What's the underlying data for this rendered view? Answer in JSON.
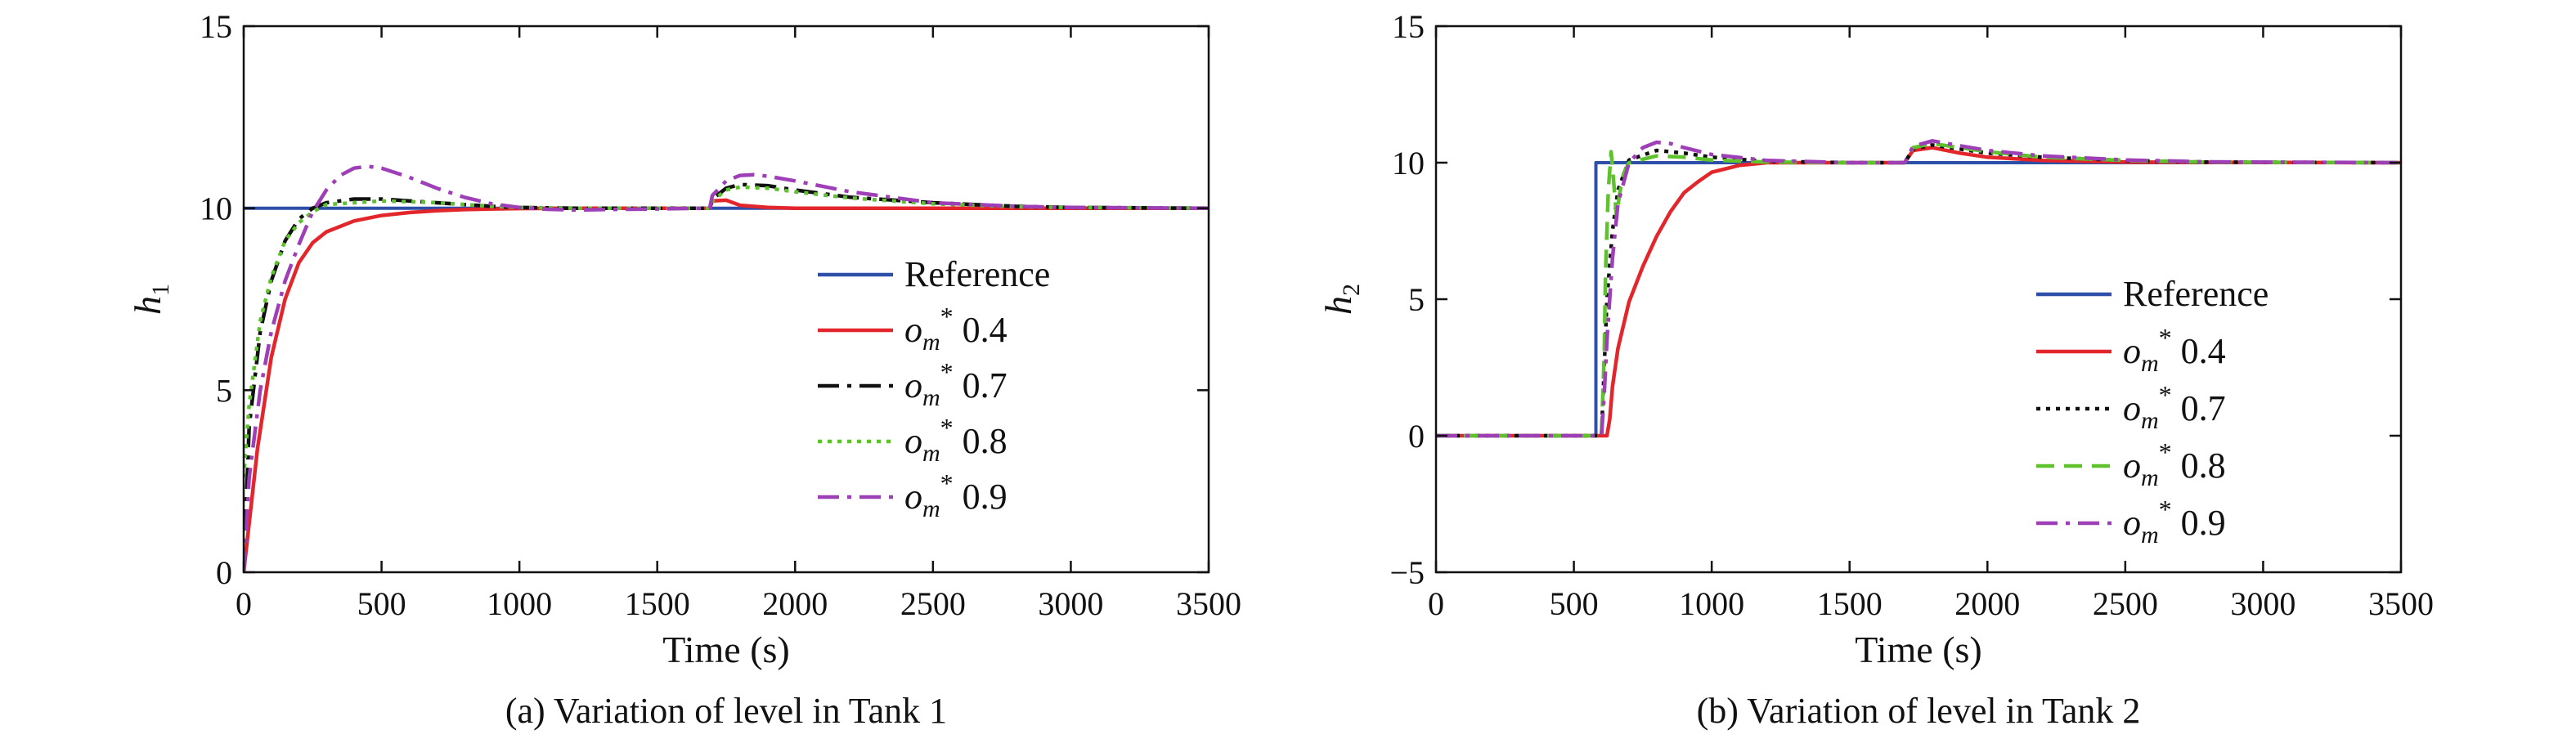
{
  "chart_data": [
    {
      "type": "line",
      "caption": "(a) Variation of level in Tank 1",
      "xlabel": "Time (s)",
      "ylabel": {
        "main": "h",
        "sub": "1"
      },
      "xlim": [
        0,
        3500
      ],
      "ylim": [
        0,
        15
      ],
      "xticks": [
        0,
        500,
        1000,
        1500,
        2000,
        2500,
        3000,
        3500
      ],
      "yticks": [
        0,
        5,
        10,
        15
      ],
      "grid": false,
      "legend_position": "center-right",
      "series": [
        {
          "name": "Reference",
          "color": "#2E4FA8",
          "dash": "solid",
          "x": [
            0,
            3500
          ],
          "y": [
            10,
            10
          ]
        },
        {
          "name": "o_m* 0.4",
          "color": "#E3262B",
          "dash": "solid",
          "x": [
            0,
            50,
            100,
            150,
            200,
            250,
            300,
            400,
            500,
            600,
            700,
            800,
            900,
            1000,
            1200,
            1500,
            1690,
            1700,
            1750,
            1800,
            1900,
            2000,
            2500,
            3000,
            3500
          ],
          "y": [
            0,
            3.4,
            5.9,
            7.5,
            8.5,
            9.05,
            9.35,
            9.65,
            9.8,
            9.88,
            9.93,
            9.96,
            9.98,
            9.99,
            10.0,
            10.0,
            10.0,
            10.2,
            10.22,
            10.08,
            10.02,
            10.0,
            10.0,
            10.0,
            10.0
          ]
        },
        {
          "name": "o_m* 0.7",
          "color": "#111111",
          "dash": "dashdot",
          "x": [
            0,
            20,
            60,
            100,
            150,
            200,
            250,
            300,
            400,
            500,
            600,
            700,
            800,
            900,
            1000,
            1200,
            1400,
            1500,
            1690,
            1700,
            1750,
            1800,
            1900,
            2000,
            2200,
            2500,
            2800,
            3000,
            3500
          ],
          "y": [
            0,
            4.0,
            6.6,
            8.0,
            9.1,
            9.7,
            10.0,
            10.15,
            10.25,
            10.25,
            10.2,
            10.15,
            10.1,
            10.05,
            10.02,
            10.0,
            10.0,
            10.0,
            10.0,
            10.25,
            10.55,
            10.65,
            10.62,
            10.5,
            10.3,
            10.15,
            10.05,
            10.02,
            10.0
          ]
        },
        {
          "name": "o_m* 0.8",
          "color": "#5EC22D",
          "dash": "dotted",
          "x": [
            0,
            20,
            60,
            100,
            150,
            200,
            250,
            300,
            400,
            500,
            600,
            700,
            800,
            900,
            1000,
            1200,
            1500,
            1690,
            1700,
            1750,
            1800,
            1900,
            2000,
            2200,
            2500,
            2800,
            3000,
            3500
          ],
          "y": [
            2.6,
            4.6,
            6.9,
            8.1,
            9.1,
            9.6,
            9.9,
            10.1,
            10.15,
            10.2,
            10.18,
            10.15,
            10.1,
            10.05,
            10.02,
            10.0,
            10.0,
            10.0,
            10.2,
            10.5,
            10.58,
            10.55,
            10.45,
            10.28,
            10.12,
            10.04,
            10.02,
            10.0
          ]
        },
        {
          "name": "o_m* 0.9",
          "color": "#9E3FB7",
          "dash": "dashdot",
          "x": [
            0,
            20,
            60,
            100,
            150,
            200,
            250,
            300,
            350,
            400,
            450,
            500,
            600,
            700,
            800,
            900,
            1000,
            1100,
            1200,
            1300,
            1400,
            1500,
            1690,
            1700,
            1750,
            1800,
            1850,
            1900,
            2000,
            2200,
            2500,
            2800,
            3000,
            3500
          ],
          "y": [
            0,
            2.6,
            5.0,
            6.6,
            8.0,
            9.0,
            9.9,
            10.5,
            10.9,
            11.1,
            11.15,
            11.1,
            10.85,
            10.55,
            10.3,
            10.12,
            10.02,
            9.97,
            9.95,
            9.96,
            9.97,
            9.98,
            10.0,
            10.35,
            10.75,
            10.9,
            10.92,
            10.88,
            10.75,
            10.45,
            10.15,
            10.05,
            10.02,
            10.0
          ]
        }
      ]
    },
    {
      "type": "line",
      "caption": "(b) Variation of level in Tank 2",
      "xlabel": "Time (s)",
      "ylabel": {
        "main": "h",
        "sub": "2"
      },
      "xlim": [
        0,
        3500
      ],
      "ylim": [
        -5,
        15
      ],
      "xticks": [
        0,
        500,
        1000,
        1500,
        2000,
        2500,
        3000,
        3500
      ],
      "yticks": [
        -5,
        0,
        5,
        10,
        15
      ],
      "ytick_labels": [
        "−5",
        "0",
        "5",
        "10",
        "15"
      ],
      "grid": false,
      "legend_position": "center-right",
      "series": [
        {
          "name": "Reference",
          "color": "#2E4FA8",
          "dash": "solid",
          "x": [
            0,
            580,
            580,
            3500
          ],
          "y": [
            0,
            0,
            10,
            10
          ]
        },
        {
          "name": "o_m* 0.4",
          "color": "#E3262B",
          "dash": "solid",
          "x": [
            0,
            620,
            630,
            640,
            660,
            700,
            750,
            800,
            850,
            900,
            950,
            1000,
            1100,
            1200,
            1400,
            1700,
            1730,
            1800,
            1900,
            2000,
            2200,
            2500,
            3500
          ],
          "y": [
            0,
            0,
            0.6,
            1.8,
            3.2,
            4.9,
            6.2,
            7.3,
            8.2,
            8.9,
            9.3,
            9.65,
            9.9,
            10.0,
            10.0,
            10.0,
            10.45,
            10.55,
            10.35,
            10.2,
            10.08,
            10.02,
            10.0
          ]
        },
        {
          "name": "o_m* 0.7",
          "color": "#111111",
          "dash": "dotted",
          "x": [
            0,
            600,
            610,
            620,
            640,
            660,
            700,
            800,
            900,
            1000,
            1200,
            1500,
            1700,
            1730,
            1800,
            1900,
            2000,
            2200,
            2500,
            2800,
            3500
          ],
          "y": [
            0,
            0,
            2.5,
            5.0,
            7.5,
            9.0,
            10.1,
            10.45,
            10.35,
            10.2,
            10.05,
            10.0,
            10.0,
            10.5,
            10.65,
            10.5,
            10.35,
            10.2,
            10.08,
            10.02,
            10.0
          ]
        },
        {
          "name": "o_m* 0.8",
          "color": "#5EC22D",
          "dash": "dashed",
          "x": [
            0,
            600,
            610,
            615,
            625,
            635,
            645,
            655,
            665,
            680,
            700,
            800,
            900,
            1000,
            1200,
            1500,
            1700,
            1730,
            1800,
            1900,
            2000,
            2200,
            2500,
            2800,
            3500
          ],
          "y": [
            0,
            0,
            3.0,
            6.0,
            9.0,
            10.4,
            9.2,
            8.0,
            8.8,
            9.6,
            10.0,
            10.25,
            10.2,
            10.1,
            10.02,
            10.0,
            10.0,
            10.55,
            10.7,
            10.55,
            10.4,
            10.2,
            10.08,
            10.02,
            10.0
          ]
        },
        {
          "name": "o_m* 0.9",
          "color": "#9E3FB7",
          "dash": "dashdot",
          "x": [
            0,
            600,
            610,
            620,
            640,
            660,
            700,
            750,
            800,
            850,
            900,
            1000,
            1200,
            1500,
            1700,
            1730,
            1800,
            1900,
            2000,
            2200,
            2500,
            2800,
            3500
          ],
          "y": [
            0,
            0,
            1.5,
            3.5,
            6.5,
            8.5,
            10.0,
            10.55,
            10.75,
            10.7,
            10.55,
            10.3,
            10.08,
            10.0,
            10.0,
            10.6,
            10.8,
            10.62,
            10.45,
            10.25,
            10.1,
            10.03,
            10.0
          ]
        }
      ]
    }
  ]
}
